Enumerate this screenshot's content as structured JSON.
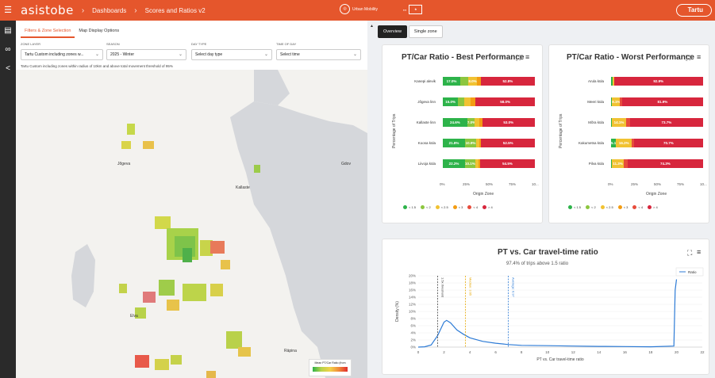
{
  "header": {
    "logo": "asistobe",
    "breadcrumb": [
      "Dashboards",
      "Scores and Ratios v2"
    ],
    "partner1": "Urban Mobility",
    "city": "Tartu"
  },
  "left_panel": {
    "tabs": [
      {
        "label": "Filters & Zone Selection",
        "active": true
      },
      {
        "label": "Map Display Options",
        "active": false
      }
    ],
    "filters": [
      {
        "label": "ZONE LAYER",
        "value": "Tartu Custom including zones w..."
      },
      {
        "label": "SEASON",
        "value": "2025 - Winter"
      },
      {
        "label": "DAY TYPE",
        "value": "Select day type"
      },
      {
        "label": "TIME OF DAY",
        "value": "Select time"
      }
    ],
    "note": "Tartu Custom including zones within radius of 10km and above total movement threshold of 95%",
    "map_labels": [
      "Jõgeva",
      "Kallaste",
      "Gdov",
      "Elva",
      "Räpina"
    ],
    "legend_title": "Mean PT/Car Ratio (from"
  },
  "overview_tabs": [
    {
      "label": "Overview",
      "active": true
    },
    {
      "label": "Single zone",
      "active": false
    }
  ],
  "palette": {
    "lt15": "#2db34a",
    "lt2": "#8cc63f",
    "lt25": "#f1c232",
    "lt3": "#f39c12",
    "lt4": "#e74c3c",
    "gt4": "#d7263d"
  },
  "legend_labels": [
    "< 1.5",
    "< 2",
    "< 2.5",
    "< 3",
    "< 4",
    "> 4"
  ],
  "best_chart": {
    "title": "PT/Car Ratio - Best Performance",
    "ylabel": "Percentage of Trips",
    "xlabel": "Origin Zone",
    "ticks": [
      "0%",
      "25%",
      "50%",
      "75%",
      "10..."
    ],
    "rows": [
      {
        "label": "Kanepi alevik",
        "segs": [
          {
            "v": 17.0,
            "c": "lt15",
            "t": "17.0%"
          },
          {
            "v": 8,
            "c": "lt2",
            "t": ""
          },
          {
            "v": 8.0,
            "c": "lt25",
            "t": "8.0%"
          },
          {
            "v": 4,
            "c": "lt3",
            "t": ""
          },
          {
            "v": 52.8,
            "c": "gt4",
            "t": "52.8%"
          }
        ]
      },
      {
        "label": "Jõgeva linn",
        "segs": [
          {
            "v": 15.0,
            "c": "lt15",
            "t": "15.0%"
          },
          {
            "v": 6,
            "c": "lt2",
            "t": ""
          },
          {
            "v": 6,
            "c": "lt25",
            "t": ""
          },
          {
            "v": 5,
            "c": "lt3",
            "t": ""
          },
          {
            "v": 58.0,
            "c": "gt4",
            "t": "58.0%"
          }
        ]
      },
      {
        "label": "Kallaste linn",
        "segs": [
          {
            "v": 24.6,
            "c": "lt15",
            "t": "24.6%"
          },
          {
            "v": 7.0,
            "c": "lt2",
            "t": "7.0%"
          },
          {
            "v": 5,
            "c": "lt25",
            "t": ""
          },
          {
            "v": 3,
            "c": "lt3",
            "t": ""
          },
          {
            "v": 53.0,
            "c": "gt4",
            "t": "53.0%"
          }
        ]
      },
      {
        "label": "Koosa küla",
        "segs": [
          {
            "v": 21.8,
            "c": "lt15",
            "t": "21.8%"
          },
          {
            "v": 10.9,
            "c": "lt2",
            "t": "10.9%"
          },
          {
            "v": 3,
            "c": "lt25",
            "t": ""
          },
          {
            "v": 2,
            "c": "lt3",
            "t": ""
          },
          {
            "v": 52.5,
            "c": "gt4",
            "t": "52.5%"
          }
        ]
      },
      {
        "label": "Liivoja küla",
        "segs": [
          {
            "v": 22.2,
            "c": "lt15",
            "t": "22.2%"
          },
          {
            "v": 10.1,
            "c": "lt2",
            "t": "10.1%"
          },
          {
            "v": 3,
            "c": "lt25",
            "t": ""
          },
          {
            "v": 2,
            "c": "lt3",
            "t": ""
          },
          {
            "v": 54.5,
            "c": "gt4",
            "t": "54.5%"
          }
        ]
      }
    ]
  },
  "worst_chart": {
    "title": "PT/Car Ratio - Worst Performance",
    "ylabel": "Percentage of Trips",
    "xlabel": "Origin Zone",
    "ticks": [
      "0%",
      "25%",
      "50%",
      "75%",
      "10..."
    ],
    "rows": [
      {
        "label": "Arula küla",
        "segs": [
          {
            "v": 2,
            "c": "lt15",
            "t": ""
          },
          {
            "v": 1,
            "c": "lt25",
            "t": ""
          },
          {
            "v": 92.9,
            "c": "gt4",
            "t": "92.9%"
          }
        ]
      },
      {
        "label": "Meeri küla",
        "segs": [
          {
            "v": 1,
            "c": "lt15",
            "t": ""
          },
          {
            "v": 8.1,
            "c": "lt25",
            "t": "8.1%"
          },
          {
            "v": 2,
            "c": "lt4",
            "t": ""
          },
          {
            "v": 81.9,
            "c": "gt4",
            "t": "81.9%"
          }
        ]
      },
      {
        "label": "Mõra küla",
        "segs": [
          {
            "v": 1,
            "c": "lt15",
            "t": ""
          },
          {
            "v": 14.1,
            "c": "lt25",
            "t": "14.1%"
          },
          {
            "v": 4,
            "c": "lt4",
            "t": ""
          },
          {
            "v": 73.7,
            "c": "gt4",
            "t": "73.7%"
          }
        ]
      },
      {
        "label": "Kakumetsa küla",
        "segs": [
          {
            "v": 5.1,
            "c": "lt15",
            "t": "5.1%"
          },
          {
            "v": 16.2,
            "c": "lt25",
            "t": "16.2%"
          },
          {
            "v": 2,
            "c": "lt4",
            "t": ""
          },
          {
            "v": 70.7,
            "c": "gt4",
            "t": "70.7%"
          }
        ]
      },
      {
        "label": "Pilva küla",
        "segs": [
          {
            "v": 1,
            "c": "lt15",
            "t": ""
          },
          {
            "v": 11.3,
            "c": "lt25",
            "t": "11.3%"
          },
          {
            "v": 4,
            "c": "lt4",
            "t": ""
          },
          {
            "v": 74.3,
            "c": "gt4",
            "t": "74.3%"
          }
        ]
      }
    ]
  },
  "chart_data": {
    "type": "area",
    "title": "PT vs. Car travel-time ratio",
    "subtitle": "97.4% of trips above 1.5 ratio",
    "xlabel": "PT vs. Car travel-time ratio",
    "ylabel": "Density (%)",
    "series": [
      {
        "name": "Ratio",
        "x": [
          0,
          0.5,
          1,
          1.5,
          2,
          2.2,
          2.5,
          3,
          3.5,
          4,
          5,
          6,
          7,
          8,
          10,
          12,
          14,
          16,
          18,
          19.8,
          19.9,
          20
        ],
        "y": [
          0,
          0.1,
          0.6,
          3.2,
          7,
          7.5,
          6.8,
          4.8,
          3.6,
          2.6,
          1.6,
          1.1,
          0.7,
          0.5,
          0.4,
          0.3,
          0.2,
          0.15,
          0.1,
          0.3,
          16,
          19
        ]
      }
    ],
    "xticks": [
      0,
      2,
      4,
      6,
      8,
      10,
      12,
      14,
      16,
      18,
      20,
      22
    ],
    "yticks": [
      "0%",
      "2%",
      "4%",
      "6%",
      "8%",
      "10%",
      "12%",
      "14%",
      "16%",
      "18%",
      "20%"
    ],
    "xlim": [
      0,
      22
    ],
    "ylim": [
      0,
      20
    ],
    "reference_lines": [
      {
        "label": "1.5x threshold",
        "x": 1.5,
        "color": "#444444"
      },
      {
        "label": "Median: 3.65",
        "x": 3.65,
        "color": "#e6a700"
      },
      {
        "label": "Average: 6.97",
        "x": 6.97,
        "color": "#2d7bd6"
      }
    ]
  }
}
